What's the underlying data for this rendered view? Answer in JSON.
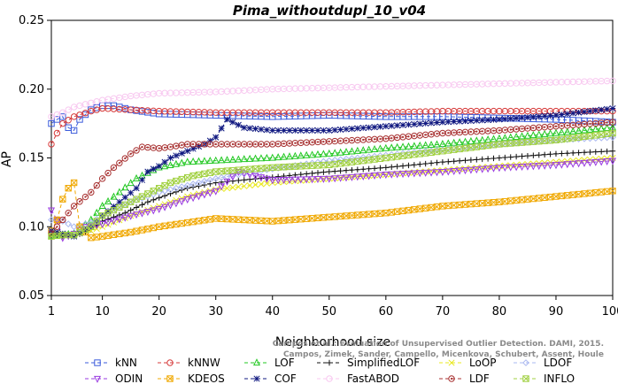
{
  "chart_data": {
    "type": "line",
    "title": "Pima_withoutdupl_10_v04",
    "xlabel": "Neighborhood size",
    "ylabel": "AP",
    "xlim": [
      1,
      100
    ],
    "ylim": [
      0.05,
      0.25
    ],
    "xticks": [
      1,
      10,
      20,
      30,
      40,
      50,
      60,
      70,
      80,
      90,
      100
    ],
    "yticks": [
      0.05,
      0.1,
      0.15,
      0.2,
      0.25
    ],
    "xtick_labels": [
      "1",
      "10",
      "20",
      "30",
      "40",
      "50",
      "60",
      "70",
      "80",
      "90",
      "100"
    ],
    "ytick_labels": [
      "0.05",
      "0.10",
      "0.15",
      "0.20",
      "0.25"
    ],
    "grid": false,
    "legend_position": "bottom",
    "series": [
      {
        "name": "kNN",
        "color": "#3b5bdb",
        "marker": "square",
        "points": [
          [
            1,
            0.175
          ],
          [
            2,
            0.178
          ],
          [
            3,
            0.18
          ],
          [
            4,
            0.172
          ],
          [
            5,
            0.17
          ],
          [
            6,
            0.178
          ],
          [
            8,
            0.185
          ],
          [
            10,
            0.188
          ],
          [
            12,
            0.188
          ],
          [
            15,
            0.185
          ],
          [
            20,
            0.182
          ],
          [
            30,
            0.181
          ],
          [
            40,
            0.18
          ],
          [
            50,
            0.181
          ],
          [
            60,
            0.18
          ],
          [
            70,
            0.18
          ],
          [
            80,
            0.179
          ],
          [
            90,
            0.178
          ],
          [
            100,
            0.176
          ]
        ]
      },
      {
        "name": "kNNW",
        "color": "#d63b3b",
        "marker": "circle",
        "points": [
          [
            1,
            0.16
          ],
          [
            2,
            0.168
          ],
          [
            3,
            0.175
          ],
          [
            5,
            0.18
          ],
          [
            8,
            0.184
          ],
          [
            10,
            0.186
          ],
          [
            15,
            0.185
          ],
          [
            20,
            0.184
          ],
          [
            30,
            0.183
          ],
          [
            40,
            0.183
          ],
          [
            50,
            0.183
          ],
          [
            60,
            0.183
          ],
          [
            70,
            0.184
          ],
          [
            80,
            0.184
          ],
          [
            90,
            0.184
          ],
          [
            100,
            0.184
          ]
        ]
      },
      {
        "name": "LOF",
        "color": "#22c822",
        "marker": "triangle-up",
        "points": [
          [
            1,
            0.093
          ],
          [
            3,
            0.094
          ],
          [
            5,
            0.095
          ],
          [
            8,
            0.105
          ],
          [
            10,
            0.115
          ],
          [
            13,
            0.125
          ],
          [
            16,
            0.135
          ],
          [
            20,
            0.143
          ],
          [
            25,
            0.147
          ],
          [
            30,
            0.148
          ],
          [
            40,
            0.15
          ],
          [
            50,
            0.153
          ],
          [
            60,
            0.157
          ],
          [
            70,
            0.16
          ],
          [
            80,
            0.164
          ],
          [
            90,
            0.168
          ],
          [
            100,
            0.172
          ]
        ]
      },
      {
        "name": "SimplifiedLOF",
        "color": "#111111",
        "marker": "plus",
        "points": [
          [
            1,
            0.095
          ],
          [
            3,
            0.093
          ],
          [
            5,
            0.093
          ],
          [
            8,
            0.098
          ],
          [
            10,
            0.104
          ],
          [
            14,
            0.11
          ],
          [
            18,
            0.118
          ],
          [
            22,
            0.124
          ],
          [
            25,
            0.128
          ],
          [
            30,
            0.132
          ],
          [
            40,
            0.136
          ],
          [
            50,
            0.14
          ],
          [
            60,
            0.143
          ],
          [
            70,
            0.147
          ],
          [
            80,
            0.15
          ],
          [
            90,
            0.153
          ],
          [
            100,
            0.155
          ]
        ]
      },
      {
        "name": "LoOP",
        "color": "#e8e820",
        "marker": "x",
        "points": [
          [
            1,
            0.097
          ],
          [
            3,
            0.094
          ],
          [
            5,
            0.094
          ],
          [
            8,
            0.097
          ],
          [
            10,
            0.1
          ],
          [
            15,
            0.108
          ],
          [
            20,
            0.115
          ],
          [
            25,
            0.122
          ],
          [
            30,
            0.127
          ],
          [
            40,
            0.132
          ],
          [
            50,
            0.135
          ],
          [
            60,
            0.138
          ],
          [
            70,
            0.141
          ],
          [
            80,
            0.144
          ],
          [
            90,
            0.147
          ],
          [
            100,
            0.15
          ]
        ]
      },
      {
        "name": "LDOF",
        "color": "#aab8f0",
        "marker": "diamond",
        "points": [
          [
            1,
            0.105
          ],
          [
            3,
            0.104
          ],
          [
            5,
            0.1
          ],
          [
            8,
            0.103
          ],
          [
            10,
            0.108
          ],
          [
            15,
            0.118
          ],
          [
            20,
            0.125
          ],
          [
            30,
            0.135
          ],
          [
            40,
            0.142
          ],
          [
            50,
            0.148
          ],
          [
            60,
            0.152
          ],
          [
            70,
            0.156
          ],
          [
            80,
            0.16
          ],
          [
            90,
            0.163
          ],
          [
            100,
            0.165
          ]
        ]
      },
      {
        "name": "ODIN",
        "color": "#9a3be0",
        "marker": "triangle-down",
        "points": [
          [
            1,
            0.112
          ],
          [
            2,
            0.105
          ],
          [
            3,
            0.092
          ],
          [
            5,
            0.095
          ],
          [
            7,
            0.1
          ],
          [
            10,
            0.102
          ],
          [
            15,
            0.108
          ],
          [
            20,
            0.113
          ],
          [
            25,
            0.12
          ],
          [
            30,
            0.126
          ],
          [
            34,
            0.14
          ],
          [
            40,
            0.134
          ],
          [
            50,
            0.135
          ],
          [
            60,
            0.138
          ],
          [
            70,
            0.14
          ],
          [
            80,
            0.143
          ],
          [
            90,
            0.145
          ],
          [
            100,
            0.148
          ]
        ]
      },
      {
        "name": "KDEOS",
        "color": "#f0a800",
        "marker": "square-x",
        "points": [
          [
            1,
            0.097
          ],
          [
            2,
            0.105
          ],
          [
            3,
            0.12
          ],
          [
            4,
            0.128
          ],
          [
            5,
            0.132
          ],
          [
            6,
            0.1
          ],
          [
            8,
            0.092
          ],
          [
            10,
            0.093
          ],
          [
            15,
            0.096
          ],
          [
            20,
            0.1
          ],
          [
            25,
            0.103
          ],
          [
            30,
            0.106
          ],
          [
            40,
            0.104
          ],
          [
            50,
            0.107
          ],
          [
            60,
            0.11
          ],
          [
            70,
            0.115
          ],
          [
            80,
            0.118
          ],
          [
            90,
            0.122
          ],
          [
            100,
            0.126
          ]
        ]
      },
      {
        "name": "COF",
        "color": "#101880",
        "marker": "asterisk",
        "points": [
          [
            1,
            0.097
          ],
          [
            3,
            0.095
          ],
          [
            5,
            0.093
          ],
          [
            8,
            0.1
          ],
          [
            10,
            0.108
          ],
          [
            13,
            0.118
          ],
          [
            16,
            0.128
          ],
          [
            18,
            0.14
          ],
          [
            20,
            0.144
          ],
          [
            22,
            0.15
          ],
          [
            25,
            0.155
          ],
          [
            28,
            0.16
          ],
          [
            30,
            0.165
          ],
          [
            32,
            0.178
          ],
          [
            35,
            0.172
          ],
          [
            40,
            0.17
          ],
          [
            50,
            0.17
          ],
          [
            60,
            0.173
          ],
          [
            70,
            0.176
          ],
          [
            80,
            0.178
          ],
          [
            90,
            0.181
          ],
          [
            100,
            0.186
          ]
        ]
      },
      {
        "name": "FastABOD",
        "color": "#f8c8f0",
        "marker": "circle",
        "points": [
          [
            1,
            0.18
          ],
          [
            3,
            0.183
          ],
          [
            5,
            0.187
          ],
          [
            8,
            0.19
          ],
          [
            10,
            0.192
          ],
          [
            15,
            0.195
          ],
          [
            20,
            0.197
          ],
          [
            30,
            0.198
          ],
          [
            40,
            0.2
          ],
          [
            50,
            0.201
          ],
          [
            60,
            0.202
          ],
          [
            70,
            0.203
          ],
          [
            80,
            0.204
          ],
          [
            90,
            0.205
          ],
          [
            100,
            0.206
          ]
        ]
      },
      {
        "name": "LDF",
        "color": "#a83232",
        "marker": "circle-dot",
        "points": [
          [
            1,
            0.095
          ],
          [
            3,
            0.105
          ],
          [
            5,
            0.115
          ],
          [
            8,
            0.125
          ],
          [
            10,
            0.135
          ],
          [
            12,
            0.143
          ],
          [
            15,
            0.153
          ],
          [
            17,
            0.158
          ],
          [
            20,
            0.157
          ],
          [
            22,
            0.158
          ],
          [
            25,
            0.16
          ],
          [
            30,
            0.16
          ],
          [
            40,
            0.16
          ],
          [
            50,
            0.162
          ],
          [
            60,
            0.164
          ],
          [
            70,
            0.168
          ],
          [
            80,
            0.17
          ],
          [
            90,
            0.173
          ],
          [
            100,
            0.176
          ]
        ]
      },
      {
        "name": "INFLO",
        "color": "#a0d040",
        "marker": "square-x",
        "points": [
          [
            1,
            0.093
          ],
          [
            3,
            0.094
          ],
          [
            5,
            0.094
          ],
          [
            8,
            0.1
          ],
          [
            10,
            0.108
          ],
          [
            14,
            0.116
          ],
          [
            18,
            0.124
          ],
          [
            22,
            0.132
          ],
          [
            26,
            0.137
          ],
          [
            30,
            0.14
          ],
          [
            40,
            0.143
          ],
          [
            50,
            0.145
          ],
          [
            60,
            0.15
          ],
          [
            70,
            0.155
          ],
          [
            80,
            0.16
          ],
          [
            90,
            0.163
          ],
          [
            100,
            0.168
          ]
        ]
      }
    ],
    "legend": [
      [
        "kNN",
        "kNNW",
        "LOF",
        "SimplifiedLOF",
        "LoOP",
        "LDOF"
      ],
      [
        "ODIN",
        "KDEOS",
        "COF",
        "FastABOD",
        "LDF",
        "INFLO"
      ]
    ]
  },
  "watermark": {
    "line1": "Campos et al.: Evaluation of Unsupervised Outlier Detection. DAMI, 2015.",
    "line2": "Campos, Zimek, Sander, Campello, Micenkova, Schubert, Assent, Houle"
  }
}
